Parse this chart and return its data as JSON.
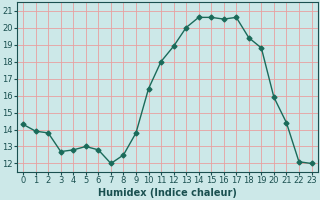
{
  "x": [
    0,
    1,
    2,
    3,
    4,
    5,
    6,
    7,
    8,
    9,
    10,
    11,
    12,
    13,
    14,
    15,
    16,
    17,
    18,
    19,
    20,
    21,
    22,
    23
  ],
  "y": [
    14.3,
    13.9,
    13.8,
    12.7,
    12.8,
    13.0,
    12.8,
    12.0,
    12.5,
    13.8,
    16.4,
    18.0,
    18.9,
    20.0,
    20.6,
    20.6,
    20.5,
    20.6,
    19.4,
    18.8,
    15.9,
    14.4,
    12.1,
    12.0
  ],
  "line_color": "#1a6b5a",
  "marker": "D",
  "marker_size": 2.5,
  "bg_color": "#cce8e8",
  "grid_color": "#e8a0a0",
  "xlabel": "Humidex (Indice chaleur)",
  "xlim": [
    -0.5,
    23.5
  ],
  "ylim": [
    11.5,
    21.5
  ],
  "yticks": [
    12,
    13,
    14,
    15,
    16,
    17,
    18,
    19,
    20,
    21
  ],
  "xticks": [
    0,
    1,
    2,
    3,
    4,
    5,
    6,
    7,
    8,
    9,
    10,
    11,
    12,
    13,
    14,
    15,
    16,
    17,
    18,
    19,
    20,
    21,
    22,
    23
  ],
  "tick_font_size": 6,
  "xlabel_fontsize": 7,
  "tick_color": "#1a5050",
  "spine_color": "#1a5050"
}
